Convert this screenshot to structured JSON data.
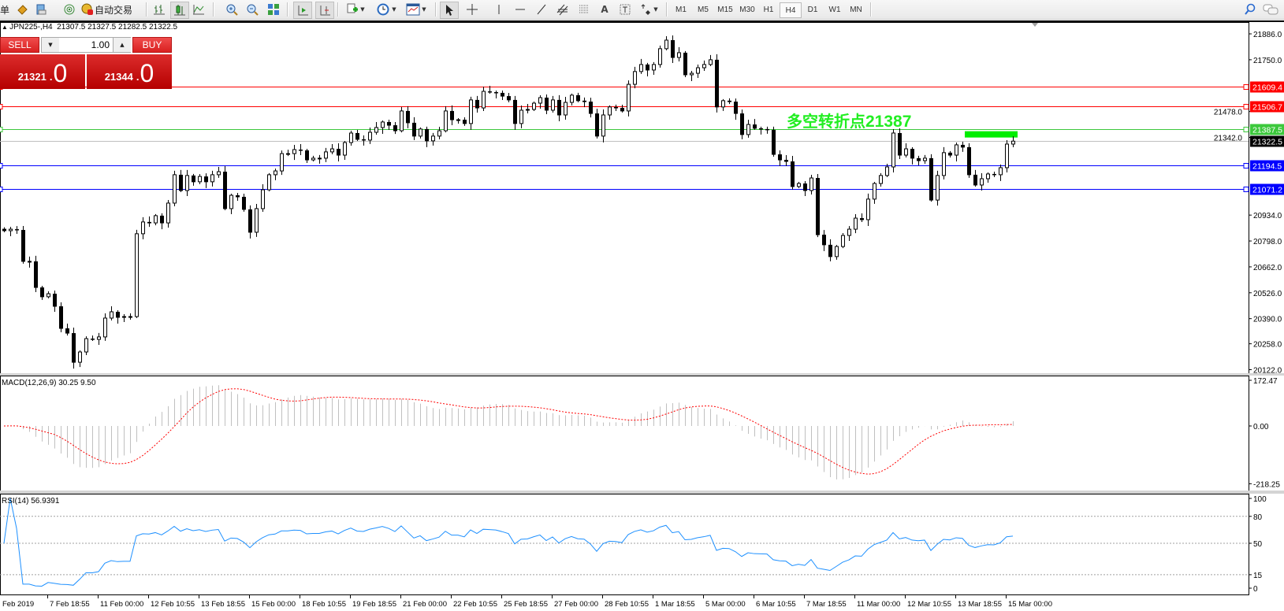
{
  "toolbar": {
    "new_order_label": "单",
    "auto_trading_label": "自动交易",
    "timeframes": [
      "M1",
      "M5",
      "M15",
      "M30",
      "H1",
      "H4",
      "D1",
      "W1",
      "MN"
    ],
    "active_timeframe": "H4"
  },
  "chart_header": {
    "symbol": "JPN225-,H4",
    "ohlc": "21307.5 21327.5 21282.5 21322.5"
  },
  "trade_panel": {
    "sell_label": "SELL",
    "buy_label": "BUY",
    "volume": "1.00",
    "sell_price_int": "21321",
    "sell_price_frac": "0",
    "buy_price_int": "21344",
    "buy_price_frac": "0"
  },
  "annotation": {
    "text_cn": "多空转折点",
    "text_num": "21387",
    "color": "#22ee22"
  },
  "chart_data": {
    "type": "candlestick",
    "symbol": "JPN225-",
    "timeframe": "H4",
    "closes": [
      20852,
      20860,
      20856,
      20691,
      20691,
      20554,
      20505,
      20521,
      20455,
      20339,
      20314,
      20161,
      20215,
      20285,
      20281,
      20294,
      20393,
      20426,
      20397,
      20401,
      20401,
      20836,
      20898,
      20893,
      20931,
      20893,
      20997,
      21146,
      21063,
      21142,
      21109,
      21137,
      21109,
      21146,
      21162,
      20968,
      21038,
      21030,
      20964,
      20844,
      20968,
      21067,
      21146,
      21166,
      21257,
      21257,
      21278,
      21274,
      21224,
      21233,
      21233,
      21266,
      21282,
      21249,
      21315,
      21365,
      21332,
      21328,
      21369,
      21394,
      21423,
      21406,
      21377,
      21481,
      21419,
      21349,
      21386,
      21324,
      21349,
      21377,
      21481,
      21435,
      21435,
      21415,
      21539,
      21497,
      21584,
      21580,
      21576,
      21559,
      21539,
      21415,
      21485,
      21489,
      21522,
      21551,
      21485,
      21539,
      21460,
      21526,
      21564,
      21535,
      21530,
      21468,
      21349,
      21460,
      21502,
      21497,
      21481,
      21621,
      21688,
      21725,
      21696,
      21725,
      21808,
      21853,
      21762,
      21787,
      21671,
      21679,
      21708,
      21725,
      21750,
      21502,
      21535,
      21530,
      21468,
      21357,
      21410,
      21390,
      21386,
      21382,
      21253,
      21224,
      21216,
      21084,
      21100,
      21063,
      21129,
      20831,
      20778,
      20716,
      20769,
      20827,
      20860,
      20918,
      20910,
      21018,
      21100,
      21142,
      21187,
      21365,
      21249,
      21282,
      21233,
      21220,
      21233,
      21013,
      21142,
      21262,
      21249,
      21303,
      21291,
      21146,
      21092,
      21125,
      21150,
      21146,
      21183,
      21307,
      21322.5
    ],
    "ylim": [
      20122,
      21886
    ],
    "price_ticks": [
      "21886.0",
      "21750.0",
      "21478.0",
      "21342.0",
      "20934.0",
      "20798.0",
      "20662.0",
      "20526.0",
      "20390.0",
      "20258.0",
      "20122.0"
    ],
    "horizontal_lines": [
      {
        "price": 21609.4,
        "label": "21609.4",
        "color": "#ff0000"
      },
      {
        "price": 21506.7,
        "label": "21506.7",
        "color": "#ff0000"
      },
      {
        "price": 21387.5,
        "label": "21387.5",
        "color": "#3cc83c"
      },
      {
        "price": 21194.5,
        "label": "21194.5",
        "color": "#0000ff"
      },
      {
        "price": 21071.2,
        "label": "21071.2",
        "color": "#0000ff"
      }
    ],
    "current_price": {
      "price": 21322.5,
      "label": "21322.5",
      "line_color": "#c0c0c0",
      "label_color": "#000000"
    },
    "pivot_marker": {
      "price": 21387,
      "color": "#00ee00"
    },
    "time_labels": [
      "Feb 2019",
      "7 Feb 18:55",
      "11 Feb 00:00",
      "12 Feb 10:55",
      "13 Feb 18:55",
      "15 Feb 00:00",
      "18 Feb 10:55",
      "19 Feb 18:55",
      "21 Feb 00:00",
      "22 Feb 10:55",
      "25 Feb 18:55",
      "27 Feb 00:00",
      "28 Feb 10:55",
      "1 Mar 18:55",
      "5 Mar 00:00",
      "6 Mar 10:55",
      "7 Mar 18:55",
      "11 Mar 00:00",
      "12 Mar 10:55",
      "13 Mar 18:55",
      "15 Mar 00:00"
    ],
    "macd": {
      "label": "MACD(12,26,9) 30.25 9.50",
      "fast": 12,
      "slow": 26,
      "signal": 9,
      "ylim": [
        -218.25,
        172.47
      ],
      "ticks": [
        "172.47",
        "0.00",
        "-218.25"
      ],
      "histogram_color": "#c0c0c0",
      "signal_color": "#ff0000"
    },
    "rsi": {
      "label": "RSI(14) 56.9391",
      "period": 14,
      "ylim": [
        0,
        100
      ],
      "levels": [
        80,
        50,
        15
      ],
      "ticks": [
        "100",
        "80",
        "50",
        "15",
        "0"
      ],
      "color": "#1e90ff"
    }
  }
}
